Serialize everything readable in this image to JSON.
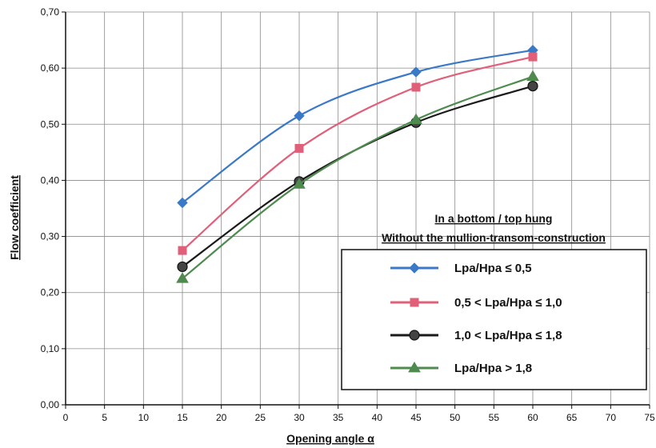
{
  "chart_data": {
    "type": "line",
    "xlabel": "Opening angle α",
    "ylabel": "Flow coefficient",
    "xlim": [
      0,
      75
    ],
    "ylim": [
      0.0,
      0.7
    ],
    "xticks": [
      "0",
      "5",
      "10",
      "15",
      "20",
      "25",
      "30",
      "35",
      "40",
      "45",
      "50",
      "55",
      "60",
      "65",
      "70",
      "75"
    ],
    "yticks": [
      "0,00",
      "0,10",
      "0,20",
      "0,30",
      "0,40",
      "0,50",
      "0,60",
      "0,70"
    ],
    "grid": true,
    "legend_title_line1": "In a bottom / top hung",
    "legend_title_line2": "Without the mullion-transom-construction",
    "legend_position": "bottom-right",
    "series": [
      {
        "name": "Lpa/Hpa ≤ 0,5",
        "color": "#3a78c8",
        "marker": "diamond",
        "x": [
          15,
          30,
          45,
          60
        ],
        "y": [
          0.36,
          0.515,
          0.593,
          0.632
        ]
      },
      {
        "name": "0,5 < Lpa/Hpa ≤ 1,0",
        "color": "#e0607a",
        "marker": "square",
        "x": [
          15,
          30,
          45,
          60
        ],
        "y": [
          0.275,
          0.457,
          0.566,
          0.62
        ]
      },
      {
        "name": "1,0 < Lpa/Hpa ≤ 1,8",
        "color": "#1a1a1a",
        "marker": "circle",
        "x": [
          15,
          30,
          45,
          60
        ],
        "y": [
          0.246,
          0.398,
          0.503,
          0.568
        ]
      },
      {
        "name": "Lpa/Hpa > 1,8",
        "color": "#4f8a4f",
        "marker": "triangle",
        "x": [
          15,
          30,
          45,
          60
        ],
        "y": [
          0.225,
          0.393,
          0.508,
          0.585
        ]
      }
    ]
  }
}
